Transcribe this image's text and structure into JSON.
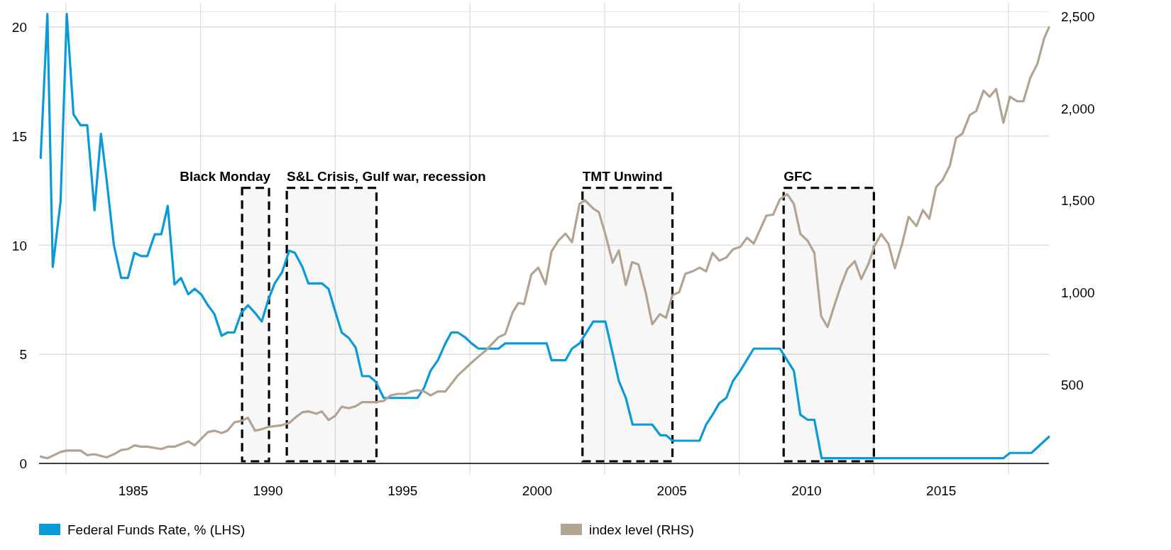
{
  "chart_data": {
    "type": "line",
    "xlim": [
      1981.5,
      2019
    ],
    "xticks": [
      {
        "value": 1982.5,
        "label": null
      },
      {
        "value": 1985,
        "label": "1985"
      },
      {
        "value": 1987.5,
        "label": null
      },
      {
        "value": 1990,
        "label": "1990"
      },
      {
        "value": 1992.5,
        "label": null
      },
      {
        "value": 1995,
        "label": "1995"
      },
      {
        "value": 1997.5,
        "label": null
      },
      {
        "value": 2000,
        "label": "2000"
      },
      {
        "value": 2002.5,
        "label": null
      },
      {
        "value": 2005,
        "label": "2005"
      },
      {
        "value": 2007.5,
        "label": null
      },
      {
        "value": 2010,
        "label": "2010"
      },
      {
        "value": 2012.5,
        "label": null
      },
      {
        "value": 2015,
        "label": "2015"
      },
      {
        "value": 2017.5,
        "label": null
      }
    ],
    "ylim": [
      0,
      20.7
    ],
    "yticks": [
      0,
      5,
      10,
      15,
      20
    ],
    "y2lim": [
      70,
      2525
    ],
    "y2ticks": [
      {
        "value": 500,
        "label": "500"
      },
      {
        "value": 1000,
        "label": "1,000"
      },
      {
        "value": 1500,
        "label": "1,500"
      },
      {
        "value": 2000,
        "label": "2,000"
      },
      {
        "value": 2500,
        "label": "2,500"
      }
    ],
    "grid": true,
    "legend": "bottom",
    "line_style": "solid",
    "series": [
      {
        "name": "Federal Funds Rate, % (LHS)",
        "color": "#0a9ad7",
        "x": [
          1981.56,
          1981.81,
          1982.01,
          1982.3,
          1982.53,
          1982.78,
          1983.04,
          1983.29,
          1983.56,
          1983.8,
          1984.01,
          1984.28,
          1984.55,
          1984.8,
          1985.04,
          1985.29,
          1985.52,
          1985.8,
          1986.04,
          1986.28,
          1986.53,
          1986.77,
          1987.04,
          1987.28,
          1987.52,
          1987.77,
          1988.01,
          1988.28,
          1988.5,
          1988.75,
          1989.01,
          1989.26,
          1989.52,
          1989.77,
          1990.0,
          1990.25,
          1990.52,
          1990.79,
          1991.0,
          1991.28,
          1991.5,
          1992.0,
          1992.25,
          1992.49,
          1992.74,
          1993.0,
          1993.26,
          1993.5,
          1993.76,
          1994.0,
          1994.3,
          1995.55,
          1995.8,
          1996.04,
          1996.31,
          1996.59,
          1996.81,
          1997.05,
          1997.32,
          1997.56,
          1997.82,
          1998.56,
          1998.81,
          2000.35,
          2000.53,
          2001.05,
          2001.29,
          2001.57,
          2002.08,
          2002.53,
          2002.78,
          2003.03,
          2003.29,
          2003.54,
          2004.27,
          2004.57,
          2004.78,
          2005.02,
          2006.03,
          2006.27,
          2006.51,
          2006.76,
          2007.02,
          2007.27,
          2007.54,
          2007.79,
          2008.04,
          2009.01,
          2009.53,
          2009.77,
          2010.04,
          2010.29,
          2010.56,
          2017.31,
          2017.55,
          2018.35,
          2019.0
        ],
        "values": [
          14.0,
          20.6,
          9.0,
          12.0,
          20.6,
          16.0,
          15.5,
          15.5,
          11.6,
          15.1,
          13.0,
          10.0,
          8.5,
          8.5,
          9.65,
          9.5,
          9.5,
          10.5,
          10.5,
          11.8,
          8.2,
          8.5,
          7.75,
          8.0,
          7.75,
          7.25,
          6.85,
          5.85,
          6.0,
          6.0,
          6.9,
          7.25,
          6.9,
          6.5,
          7.45,
          8.25,
          8.75,
          9.75,
          9.65,
          9.0,
          8.25,
          8.25,
          8.0,
          7.0,
          6.0,
          5.75,
          5.3,
          4.0,
          4.0,
          3.75,
          3.0,
          3.0,
          3.47,
          4.25,
          4.73,
          5.5,
          6.0,
          6.0,
          5.78,
          5.5,
          5.26,
          5.26,
          5.5,
          5.5,
          4.73,
          4.73,
          5.26,
          5.5,
          6.5,
          6.5,
          5.15,
          3.78,
          3.0,
          1.78,
          1.78,
          1.29,
          1.29,
          1.04,
          1.04,
          1.78,
          2.23,
          2.76,
          3.0,
          3.78,
          4.25,
          4.76,
          5.26,
          5.26,
          4.24,
          2.23,
          2.0,
          2.0,
          0.24,
          0.24,
          0.48,
          0.48,
          1.22
        ]
      },
      {
        "name": "index level (RHS)",
        "color": "#b3a393",
        "axis": "y2",
        "x": [
          1981.56,
          1981.81,
          1982.3,
          1982.53,
          1983.04,
          1983.29,
          1983.56,
          1984.01,
          1984.28,
          1984.55,
          1984.8,
          1985.04,
          1985.29,
          1985.52,
          1986.04,
          1986.28,
          1986.53,
          1987.04,
          1987.28,
          1987.77,
          1988.01,
          1988.28,
          1988.5,
          1988.75,
          1989.01,
          1989.26,
          1989.52,
          1989.77,
          1990.0,
          1990.52,
          1990.79,
          1991.05,
          1991.28,
          1991.5,
          1991.8,
          1992.0,
          1992.25,
          1992.49,
          1992.74,
          1993.0,
          1993.26,
          1993.5,
          1994.0,
          1994.3,
          1994.56,
          1994.83,
          1995.1,
          1995.31,
          1995.55,
          1995.8,
          1996.04,
          1996.31,
          1996.59,
          1997.05,
          1997.53,
          1997.82,
          1998.07,
          1998.56,
          1998.81,
          1999.08,
          1999.3,
          1999.51,
          1999.78,
          2000.04,
          2000.31,
          2000.53,
          2000.78,
          2001.05,
          2001.29,
          2001.57,
          2001.77,
          2002.08,
          2002.29,
          2002.56,
          2002.8,
          2003.03,
          2003.29,
          2003.52,
          2003.76,
          2004.03,
          2004.27,
          2004.55,
          2004.78,
          2005.02,
          2005.27,
          2005.5,
          2005.77,
          2006.03,
          2006.27,
          2006.51,
          2006.76,
          2007.02,
          2007.27,
          2007.54,
          2007.79,
          2008.04,
          2008.27,
          2008.51,
          2008.76,
          2009.01,
          2009.28,
          2009.53,
          2009.77,
          2010.04,
          2010.29,
          2010.54,
          2010.78,
          2011.02,
          2011.27,
          2011.52,
          2011.79,
          2012.03,
          2012.3,
          2012.52,
          2012.77,
          2013.04,
          2013.28,
          2013.55,
          2013.79,
          2014.08,
          2014.32,
          2014.56,
          2014.81,
          2015.05,
          2015.32,
          2015.55,
          2015.79,
          2016.06,
          2016.3,
          2016.57,
          2016.8,
          2017.04,
          2017.31,
          2017.55,
          2017.83,
          2018.05,
          2018.31,
          2018.57,
          2018.82,
          2019.0
        ],
        "values": [
          107,
          98,
          132,
          140,
          140,
          115,
          120,
          103,
          120,
          143,
          148,
          168,
          161,
          161,
          148,
          161,
          161,
          190,
          168,
          240,
          248,
          235,
          248,
          293,
          301,
          318,
          248,
          256,
          268,
          278,
          290,
          323,
          348,
          353,
          340,
          353,
          306,
          328,
          378,
          370,
          381,
          403,
          403,
          410,
          440,
          448,
          448,
          461,
          468,
          461,
          440,
          461,
          461,
          548,
          614,
          651,
          681,
          756,
          773,
          889,
          942,
          936,
          1097,
          1134,
          1044,
          1222,
          1280,
          1319,
          1272,
          1480,
          1500,
          1455,
          1435,
          1300,
          1161,
          1227,
          1039,
          1164,
          1151,
          997,
          826,
          881,
          861,
          984,
          1001,
          1101,
          1114,
          1134,
          1114,
          1214,
          1172,
          1189,
          1234,
          1247,
          1297,
          1265,
          1339,
          1417,
          1422,
          1505,
          1534,
          1480,
          1317,
          1280,
          1214,
          872,
          811,
          922,
          1034,
          1127,
          1169,
          1072,
          1155,
          1250,
          1317,
          1264,
          1131,
          1264,
          1410,
          1360,
          1447,
          1400,
          1572,
          1610,
          1688,
          1838,
          1863,
          1963,
          1985,
          2096,
          2063,
          2105,
          1922,
          2063,
          2038,
          2038,
          2166,
          2241,
          2379,
          2440
        ]
      }
    ],
    "bands": [
      {
        "axis": "x",
        "from": 1989.04,
        "to": 1990.04,
        "label": "Black Monday",
        "color": "#000000"
      },
      {
        "axis": "x",
        "from": 1990.7,
        "to": 1994.03,
        "label": "S&L Crisis, Gulf war, recession",
        "color": "#000000"
      },
      {
        "axis": "x",
        "from": 2001.68,
        "to": 2005.02,
        "label": "TMT Unwind",
        "color": "#000000"
      },
      {
        "axis": "x",
        "from": 2009.15,
        "to": 2012.5,
        "label": "GFC",
        "color": "#000000"
      }
    ]
  }
}
